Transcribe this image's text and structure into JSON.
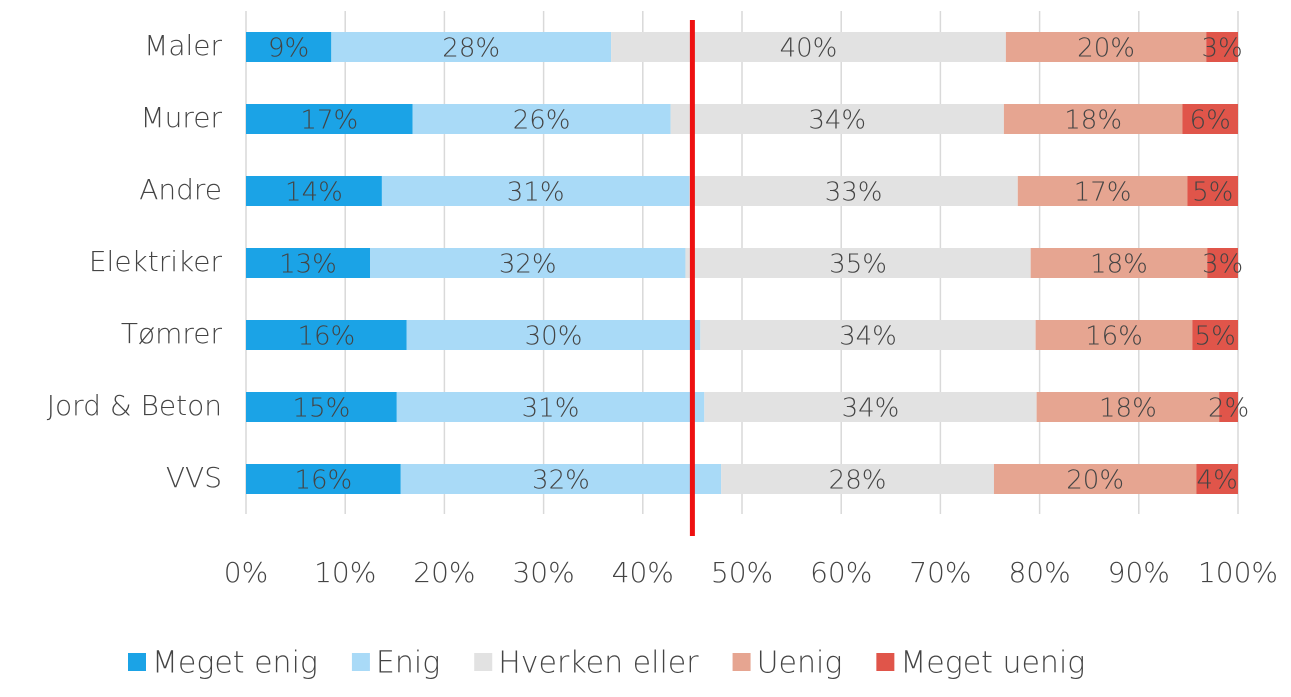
{
  "chart_data": {
    "type": "stacked_barh",
    "categories": [
      "Maler",
      "Murer",
      "Andre",
      "Elektriker",
      "Tømrer",
      "Jord & Beton",
      "VVS"
    ],
    "series": [
      {
        "name": "Meget enig",
        "color": "#1ba3e6",
        "values": [
          8.6,
          16.8,
          13.7,
          12.5,
          16.2,
          15.2,
          15.6
        ],
        "value_labels": [
          "9%",
          "17%",
          "14%",
          "13%",
          "16%",
          "15%",
          "16%"
        ]
      },
      {
        "name": "Enig",
        "color": "#a9daf7",
        "values": [
          28.2,
          26.0,
          31.0,
          31.8,
          29.6,
          31.0,
          32.3
        ],
        "value_labels": [
          "28%",
          "26%",
          "31%",
          "32%",
          "30%",
          "31%",
          "32%"
        ]
      },
      {
        "name": "Hverken eller",
        "color": "#e2e2e2",
        "values": [
          39.8,
          33.6,
          33.1,
          34.8,
          33.8,
          33.5,
          27.5
        ],
        "value_labels": [
          "40%",
          "34%",
          "33%",
          "35%",
          "34%",
          "34%",
          "28%"
        ]
      },
      {
        "name": "Uenig",
        "color": "#e6a591",
        "values": [
          20.2,
          18.0,
          17.1,
          17.8,
          15.8,
          18.4,
          20.4
        ],
        "value_labels": [
          "20%",
          "18%",
          "17%",
          "18%",
          "16%",
          "18%",
          "20%"
        ]
      },
      {
        "name": "Meget uenig",
        "color": "#e0554a",
        "values": [
          3.2,
          5.6,
          5.1,
          3.1,
          4.6,
          1.9,
          4.2
        ],
        "value_labels": [
          "3%",
          "6%",
          "5%",
          "3%",
          "5%",
          "2%",
          "4%"
        ]
      }
    ],
    "xlim": [
      0,
      100
    ],
    "xticks": [
      {
        "value": 0,
        "label": "0%"
      },
      {
        "value": 10,
        "label": "10%"
      },
      {
        "value": 20,
        "label": "20%"
      },
      {
        "value": 30,
        "label": "30%"
      },
      {
        "value": 40,
        "label": "40%"
      },
      {
        "value": 50,
        "label": "50%"
      },
      {
        "value": 60,
        "label": "60%"
      },
      {
        "value": 70,
        "label": "70%"
      },
      {
        "value": 80,
        "label": "80%"
      },
      {
        "value": 90,
        "label": "90%"
      },
      {
        "value": 100,
        "label": "100%"
      }
    ],
    "grid": true,
    "reference_line": {
      "value": 45,
      "color": "#ee1111"
    },
    "legend": "bottom"
  }
}
